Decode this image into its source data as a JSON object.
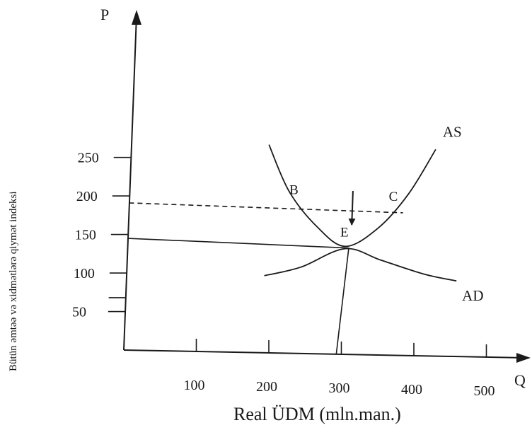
{
  "chart_data": {
    "type": "line",
    "x_axis_letter": "Q",
    "y_axis_letter": "P",
    "xlabel": "Real ÜDM (mln.man.)",
    "ylabel": "Bütün əmtəə və xidmətlərə qiymət indeksi",
    "x_ticks": [
      100,
      200,
      300,
      400,
      500
    ],
    "y_ticks": [
      50,
      100,
      150,
      200,
      250
    ],
    "xlim": [
      0,
      560
    ],
    "ylim": [
      0,
      300
    ],
    "grid": false,
    "series": [
      {
        "name": "AS",
        "color": "#1a1a1a",
        "points": [
          [
            190,
            270
          ],
          [
            220,
            210
          ],
          [
            260,
            165
          ],
          [
            300,
            140
          ],
          [
            345,
            165
          ],
          [
            385,
            210
          ],
          [
            420,
            268
          ]
        ]
      },
      {
        "name": "AD",
        "color": "#1a1a1a",
        "points": [
          [
            190,
            100
          ],
          [
            240,
            112
          ],
          [
            300,
            137
          ],
          [
            350,
            123
          ],
          [
            410,
            106
          ],
          [
            455,
            98
          ]
        ]
      }
    ],
    "reference_lines": [
      {
        "from": [
          0,
          191
        ],
        "to": [
          378,
          185
        ],
        "style": "dashed"
      },
      {
        "from": [
          0,
          145
        ],
        "to": [
          305,
          138
        ],
        "style": "solid"
      },
      {
        "from": [
          293,
          0
        ],
        "to": [
          305,
          138
        ],
        "style": "solid"
      }
    ],
    "points": [
      {
        "label": "B",
        "x": 229,
        "y": 192
      },
      {
        "label": "C",
        "x": 378,
        "y": 186
      },
      {
        "label": "E",
        "x": 305,
        "y": 138
      }
    ],
    "arrow": {
      "from": [
        308,
        212
      ],
      "to": [
        308,
        168
      ]
    }
  }
}
